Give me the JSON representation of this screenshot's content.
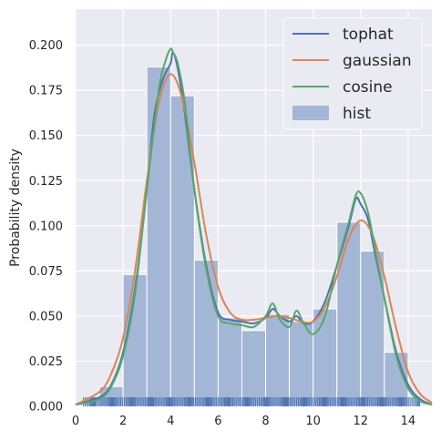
{
  "chart_data": {
    "type": "histogram+kde",
    "title": "",
    "xlabel": "",
    "ylabel": "Probability density",
    "xlim": [
      0,
      15
    ],
    "ylim": [
      0,
      0.22
    ],
    "xticks": [
      0,
      2,
      4,
      6,
      8,
      10,
      12,
      14
    ],
    "yticks": [
      0.0,
      0.025,
      0.05,
      0.075,
      0.1,
      0.125,
      0.15,
      0.175,
      0.2
    ],
    "ytick_labels": [
      "0.000",
      "0.025",
      "0.050",
      "0.075",
      "0.100",
      "0.125",
      "0.150",
      "0.175",
      "0.200"
    ],
    "grid": true,
    "legend_position": "top-right",
    "colors": {
      "background": "#eaeaf2",
      "grid": "#ffffff",
      "tophat": "#4c72b0",
      "gaussian": "#dd8452",
      "cosine": "#55a868",
      "hist": "#a4b6d6",
      "rug": "#4c72b0"
    },
    "hist": {
      "name": "hist",
      "bin_edges": [
        1,
        2,
        3,
        4,
        5,
        6,
        7,
        8,
        9,
        10,
        11,
        12,
        13,
        14
      ],
      "values": [
        0.011,
        0.073,
        0.188,
        0.172,
        0.081,
        0.049,
        0.042,
        0.051,
        0.047,
        0.054,
        0.102,
        0.086,
        0.03
      ]
    },
    "series": [
      {
        "name": "tophat",
        "color": "#4c72b0",
        "x": [
          0,
          1,
          1.5,
          2,
          2.5,
          3,
          3.3,
          3.6,
          3.8,
          4.0,
          4.1,
          4.3,
          4.6,
          5.0,
          5.5,
          6.0,
          6.5,
          7.0,
          7.5,
          8.0,
          8.3,
          8.6,
          9.0,
          9.3,
          9.6,
          10.0,
          10.5,
          11.0,
          11.5,
          11.8,
          12.0,
          12.3,
          12.6,
          13.0,
          13.5,
          14.0,
          14.5,
          15.0
        ],
        "y": [
          0.001,
          0.005,
          0.012,
          0.03,
          0.065,
          0.12,
          0.16,
          0.178,
          0.185,
          0.19,
          0.196,
          0.187,
          0.162,
          0.12,
          0.078,
          0.052,
          0.048,
          0.047,
          0.046,
          0.049,
          0.054,
          0.05,
          0.047,
          0.05,
          0.046,
          0.047,
          0.058,
          0.078,
          0.1,
          0.115,
          0.112,
          0.104,
          0.085,
          0.06,
          0.03,
          0.012,
          0.004,
          0.001
        ]
      },
      {
        "name": "gaussian",
        "color": "#dd8452",
        "x": [
          0,
          1,
          1.5,
          2,
          2.5,
          3,
          3.5,
          4.0,
          4.5,
          5.0,
          5.5,
          6.0,
          6.5,
          7.0,
          7.5,
          8.0,
          8.5,
          9.0,
          9.5,
          10.0,
          10.5,
          11.0,
          11.5,
          12.0,
          12.5,
          13.0,
          13.5,
          14.0,
          14.5,
          15.0
        ],
        "y": [
          0.001,
          0.008,
          0.018,
          0.038,
          0.075,
          0.125,
          0.168,
          0.184,
          0.17,
          0.135,
          0.095,
          0.066,
          0.052,
          0.048,
          0.048,
          0.049,
          0.05,
          0.049,
          0.047,
          0.047,
          0.055,
          0.072,
          0.093,
          0.103,
          0.095,
          0.072,
          0.043,
          0.019,
          0.007,
          0.002
        ]
      },
      {
        "name": "cosine",
        "color": "#55a868",
        "x": [
          0,
          1,
          1.5,
          2,
          2.5,
          3,
          3.5,
          3.8,
          4.0,
          4.1,
          4.3,
          4.6,
          5.0,
          5.5,
          6.0,
          6.5,
          7.0,
          7.5,
          8.0,
          8.3,
          8.6,
          9.0,
          9.3,
          9.6,
          10.0,
          10.5,
          11.0,
          11.5,
          11.8,
          12.0,
          12.3,
          12.6,
          13.0,
          13.5,
          14.0,
          14.5,
          15.0
        ],
        "y": [
          0.001,
          0.004,
          0.011,
          0.028,
          0.062,
          0.12,
          0.175,
          0.192,
          0.198,
          0.196,
          0.19,
          0.168,
          0.12,
          0.076,
          0.05,
          0.046,
          0.045,
          0.044,
          0.05,
          0.057,
          0.048,
          0.044,
          0.053,
          0.046,
          0.04,
          0.05,
          0.078,
          0.102,
          0.117,
          0.118,
          0.108,
          0.088,
          0.06,
          0.028,
          0.01,
          0.003,
          0.001
        ]
      }
    ],
    "rug": {
      "from": 0.3,
      "to": 14.5,
      "count": 260
    }
  }
}
